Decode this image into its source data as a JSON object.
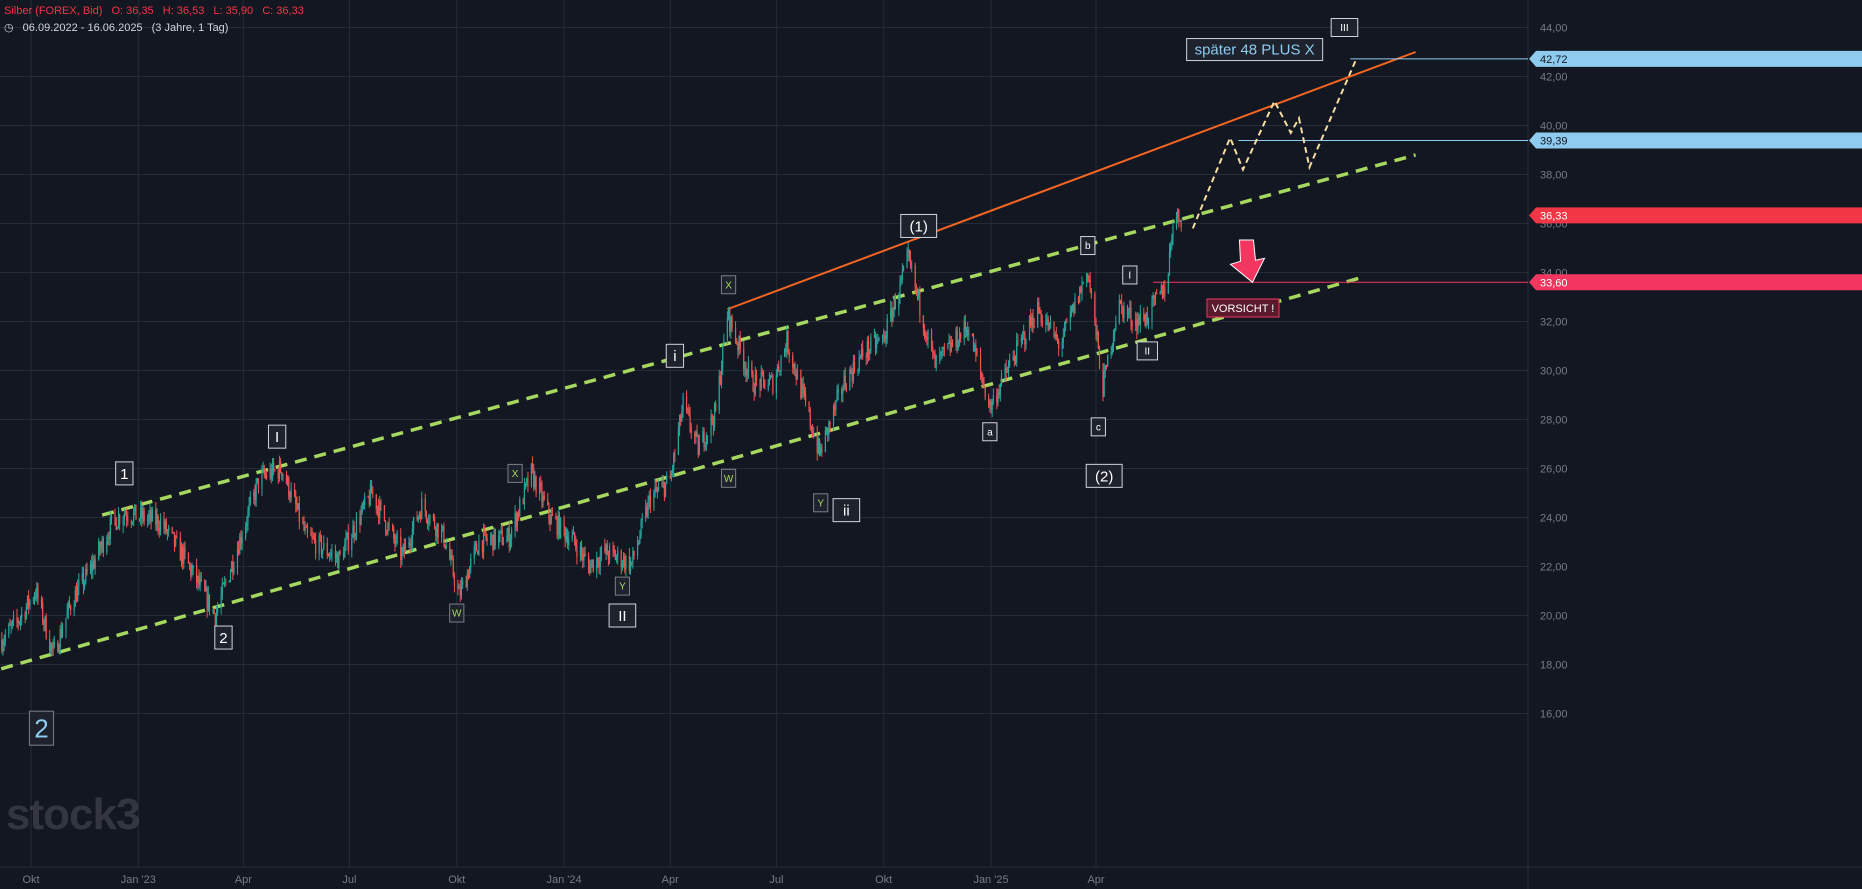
{
  "header": {
    "symbol": "Silber (FOREX, Bid)",
    "open": "O: 36,35",
    "high": "H: 36,53",
    "low": "L: 35,90",
    "close": "C: 36,33",
    "range": "06.09.2022 - 16.06.2025",
    "range_detail": "(3 Jahre, 1 Tag)"
  },
  "watermark": "stock3",
  "colors": {
    "background": "#131722",
    "grid": "#262b38",
    "axis_text": "#787b86",
    "up": "#26a69a",
    "down": "#ef5350",
    "channel_green": "#a6d75f",
    "resistance_orange": "#f26522",
    "projection": "#f5dca0",
    "target_blue": "#8ecbee",
    "warning_red": "#f23660"
  },
  "chart_data": {
    "type": "candlestick",
    "title": "Silber (FOREX, Bid)",
    "ylim": [
      15,
      45.2
    ],
    "x_ticks": [
      {
        "date": "2022-10-01",
        "label": "Okt"
      },
      {
        "date": "2023-01-01",
        "label": "Jan '23"
      },
      {
        "date": "2023-04-01",
        "label": "Apr"
      },
      {
        "date": "2023-07-01",
        "label": "Jul"
      },
      {
        "date": "2023-10-01",
        "label": "Okt"
      },
      {
        "date": "2024-01-01",
        "label": "Jan '24"
      },
      {
        "date": "2024-04-01",
        "label": "Apr"
      },
      {
        "date": "2024-07-01",
        "label": "Jul"
      },
      {
        "date": "2024-10-01",
        "label": "Okt"
      },
      {
        "date": "2025-01-01",
        "label": "Jan '25"
      },
      {
        "date": "2025-04-01",
        "label": "Apr"
      }
    ],
    "y_ticks": [
      "16,00",
      "18,00",
      "20,00",
      "22,00",
      "24,00",
      "26,00",
      "28,00",
      "30,00",
      "32,00",
      "34,00",
      "36,00",
      "38,00",
      "40,00",
      "42,00",
      "44,00"
    ],
    "price_path": [
      [
        "2022-09-06",
        19.0
      ],
      [
        "2022-09-20",
        19.8
      ],
      [
        "2022-10-05",
        21.0
      ],
      [
        "2022-10-20",
        18.4
      ],
      [
        "2022-11-05",
        20.6
      ],
      [
        "2022-11-20",
        21.8
      ],
      [
        "2022-12-10",
        23.8
      ],
      [
        "2022-12-20",
        24.2
      ],
      [
        "2023-01-20",
        23.8
      ],
      [
        "2023-02-10",
        22.3
      ],
      [
        "2023-03-08",
        20.0
      ],
      [
        "2023-03-25",
        22.5
      ],
      [
        "2023-04-15",
        25.6
      ],
      [
        "2023-05-04",
        26.0
      ],
      [
        "2023-05-25",
        23.2
      ],
      [
        "2023-06-22",
        22.3
      ],
      [
        "2023-07-20",
        25.0
      ],
      [
        "2023-08-15",
        22.4
      ],
      [
        "2023-09-01",
        24.5
      ],
      [
        "2023-09-20",
        23.2
      ],
      [
        "2023-10-03",
        20.8
      ],
      [
        "2023-10-20",
        23.0
      ],
      [
        "2023-11-15",
        23.2
      ],
      [
        "2023-12-04",
        25.8
      ],
      [
        "2023-12-20",
        24.0
      ],
      [
        "2024-01-10",
        23.0
      ],
      [
        "2024-01-22",
        22.0
      ],
      [
        "2024-02-05",
        22.6
      ],
      [
        "2024-02-28",
        22.1
      ],
      [
        "2024-03-15",
        24.8
      ],
      [
        "2024-04-01",
        25.5
      ],
      [
        "2024-04-12",
        28.6
      ],
      [
        "2024-04-25",
        26.8
      ],
      [
        "2024-05-10",
        28.3
      ],
      [
        "2024-05-20",
        32.3
      ],
      [
        "2024-06-10",
        29.5
      ],
      [
        "2024-06-28",
        29.5
      ],
      [
        "2024-07-10",
        31.2
      ],
      [
        "2024-08-07",
        26.6
      ],
      [
        "2024-08-28",
        29.5
      ],
      [
        "2024-09-15",
        30.8
      ],
      [
        "2024-10-01",
        31.3
      ],
      [
        "2024-10-22",
        34.5
      ],
      [
        "2024-11-14",
        30.2
      ],
      [
        "2024-12-12",
        31.8
      ],
      [
        "2024-12-31",
        28.5
      ],
      [
        "2025-01-20",
        30.5
      ],
      [
        "2025-02-10",
        32.5
      ],
      [
        "2025-03-01",
        31.0
      ],
      [
        "2025-03-25",
        34.1
      ],
      [
        "2025-04-07",
        29.3
      ],
      [
        "2025-04-20",
        32.7
      ],
      [
        "2025-05-05",
        32.0
      ],
      [
        "2025-05-15",
        32.2
      ],
      [
        "2025-06-01",
        33.6
      ],
      [
        "2025-06-06",
        36.2
      ],
      [
        "2025-06-16",
        36.33
      ]
    ],
    "channel_upper": [
      [
        "2022-12-01",
        24.1
      ],
      [
        "2025-12-31",
        38.8
      ]
    ],
    "channel_lower": [
      [
        "2022-08-20",
        17.6
      ],
      [
        "2025-11-15",
        33.8
      ]
    ],
    "resistance_line": [
      [
        "2024-05-20",
        32.5
      ],
      [
        "2025-12-31",
        43.0
      ]
    ],
    "projection_path": [
      [
        "2025-06-23",
        35.8
      ],
      [
        "2025-07-25",
        39.5
      ],
      [
        "2025-08-05",
        38.2
      ],
      [
        "2025-09-01",
        41.0
      ],
      [
        "2025-09-15",
        39.7
      ],
      [
        "2025-09-22",
        40.3
      ],
      [
        "2025-10-01",
        38.3
      ],
      [
        "2025-11-10",
        42.7
      ]
    ],
    "h_levels": [
      {
        "price": 42.72,
        "label": "42,72",
        "color": "#8ecbee",
        "from": "2025-11-05"
      },
      {
        "price": 39.39,
        "label": "39,39",
        "color": "#8ecbee",
        "from": "2025-08-01"
      },
      {
        "price": 36.33,
        "label": "36,33",
        "color": "#f23645",
        "from": null
      },
      {
        "price": 33.6,
        "label": "33,60",
        "color": "#f23660",
        "from": "2025-05-20"
      }
    ],
    "wave_labels": [
      {
        "text": "1",
        "date": "2022-12-20",
        "price": 25.8,
        "size": "large"
      },
      {
        "text": "2",
        "date": "2023-03-15",
        "price": 19.1,
        "size": "large"
      },
      {
        "text": "I",
        "date": "2023-04-30",
        "price": 27.3,
        "size": "large"
      },
      {
        "text": "X",
        "date": "2023-11-20",
        "price": 25.8,
        "size": "small",
        "color": "#a6d75f"
      },
      {
        "text": "W",
        "date": "2023-10-01",
        "price": 20.1,
        "size": "small",
        "color": "#a6d75f"
      },
      {
        "text": "Y",
        "date": "2024-02-20",
        "price": 21.2,
        "size": "small",
        "color": "#a6d75f"
      },
      {
        "text": "II",
        "date": "2024-02-20",
        "price": 20.0,
        "size": "large"
      },
      {
        "text": "i",
        "date": "2024-04-05",
        "price": 30.6,
        "size": "large"
      },
      {
        "text": "X",
        "date": "2024-05-21",
        "price": 33.5,
        "size": "small",
        "color": "#a6d75f"
      },
      {
        "text": "W",
        "date": "2024-05-21",
        "price": 25.6,
        "size": "small",
        "color": "#a6d75f"
      },
      {
        "text": "Y",
        "date": "2024-08-08",
        "price": 24.6,
        "size": "small",
        "color": "#a6d75f"
      },
      {
        "text": "ii",
        "date": "2024-08-30",
        "price": 24.3,
        "size": "large"
      },
      {
        "text": "(1)",
        "date": "2024-10-31",
        "price": 35.9,
        "size": "large"
      },
      {
        "text": "a",
        "date": "2024-12-31",
        "price": 27.5,
        "size": "small"
      },
      {
        "text": "b",
        "date": "2025-03-25",
        "price": 35.1,
        "size": "small"
      },
      {
        "text": "I",
        "date": "2025-04-30",
        "price": 33.9,
        "size": "small"
      },
      {
        "text": "II",
        "date": "2025-05-15",
        "price": 30.8,
        "size": "small"
      },
      {
        "text": "c",
        "date": "2025-04-03",
        "price": 27.7,
        "size": "small"
      },
      {
        "text": "(2)",
        "date": "2025-04-08",
        "price": 25.7,
        "size": "large"
      },
      {
        "text": "III",
        "date": "2025-10-31",
        "price": 44.0,
        "size": "small"
      },
      {
        "text": "2",
        "date": "2022-10-10",
        "price": 15.4,
        "size": "xlarge",
        "color": "#8ecbee"
      }
    ],
    "annotations": [
      {
        "text": "später 48 PLUS X",
        "date": "2025-08-15",
        "price": 43.1,
        "kind": "target"
      },
      {
        "text": "VORSICHT !",
        "date": "2025-08-05",
        "price": 32.55,
        "kind": "warning"
      }
    ],
    "warning_arrow": {
      "date": "2025-08-08",
      "from_price": 35.0,
      "to_price": 33.6
    }
  }
}
